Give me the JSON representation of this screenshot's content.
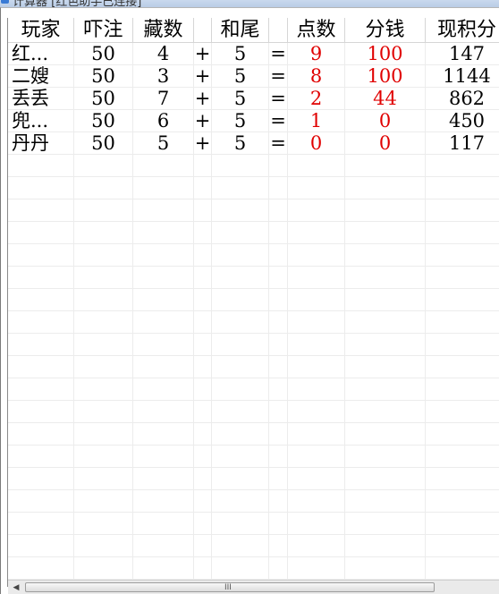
{
  "window": {
    "title": "计算器 [红色助手已连接]"
  },
  "table": {
    "columns": [
      "玩家",
      "吓注",
      "藏数",
      "",
      "和尾",
      "",
      "点数",
      "分钱",
      "现积分"
    ],
    "rows": [
      {
        "player": "红...",
        "bet": "50",
        "hidden": "4",
        "op": "+",
        "tail": "5",
        "eq": "=",
        "points": "9",
        "payout": "100",
        "score": "147"
      },
      {
        "player": "二嫂",
        "bet": "50",
        "hidden": "3",
        "op": "+",
        "tail": "5",
        "eq": "=",
        "points": "8",
        "payout": "100",
        "score": "1144"
      },
      {
        "player": "丢丢",
        "bet": "50",
        "hidden": "7",
        "op": "+",
        "tail": "5",
        "eq": "=",
        "points": "2",
        "payout": "44",
        "score": "862"
      },
      {
        "player": "兜...",
        "bet": "50",
        "hidden": "6",
        "op": "+",
        "tail": "5",
        "eq": "=",
        "points": "1",
        "payout": "0",
        "score": "450"
      },
      {
        "player": "丹丹",
        "bet": "50",
        "hidden": "5",
        "op": "+",
        "tail": "5",
        "eq": "=",
        "points": "0",
        "payout": "0",
        "score": "117"
      }
    ],
    "empty_row_count": 19
  },
  "scrollbar": {
    "left_arrow": "◀",
    "grip": "III"
  },
  "colors": {
    "highlight": "#e00000",
    "grid": "#ececec",
    "header_border": "#d6d6d6"
  }
}
